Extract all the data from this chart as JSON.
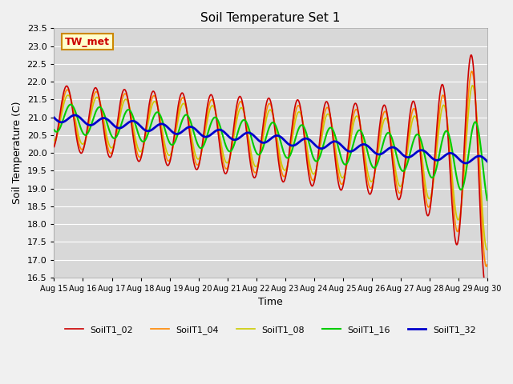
{
  "title": "Soil Temperature Set 1",
  "xlabel": "Time",
  "ylabel": "Soil Temperature (C)",
  "ylim": [
    16.5,
    23.5
  ],
  "yticks": [
    16.5,
    17.0,
    17.5,
    18.0,
    18.5,
    19.0,
    19.5,
    20.0,
    20.5,
    21.0,
    21.5,
    22.0,
    22.5,
    23.0,
    23.5
  ],
  "series_names": [
    "SoilT1_02",
    "SoilT1_04",
    "SoilT1_08",
    "SoilT1_16",
    "SoilT1_32"
  ],
  "series_colors": [
    "#cc0000",
    "#ff8800",
    "#cccc00",
    "#00cc00",
    "#0000cc"
  ],
  "series_linewidths": [
    1.2,
    1.2,
    1.2,
    1.5,
    2.0
  ],
  "background_color": "#e8e8e8",
  "plot_bg_color": "#d8d8d8",
  "grid_color": "#ffffff",
  "fig_bg_color": "#f0f0f0",
  "annotation_text": "TW_met",
  "annotation_color": "#cc0000",
  "annotation_bg": "#ffffcc",
  "annotation_border": "#cc8800",
  "n_points": 1440,
  "n_days": 15
}
